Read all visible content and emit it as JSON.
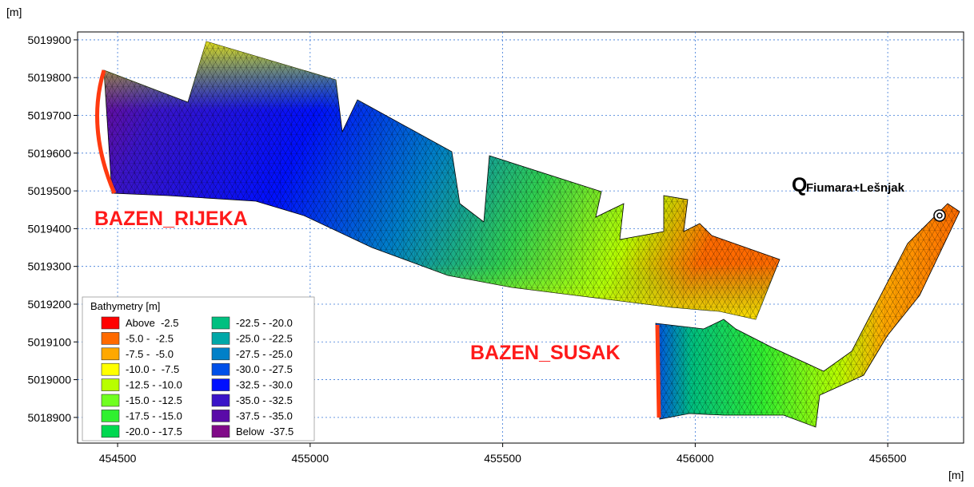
{
  "map": {
    "y_unit": "[m]",
    "x_unit": "[m]",
    "xlim": [
      454396,
      456697
    ],
    "ylim": [
      5018832,
      5019921
    ],
    "xticks": [
      454500,
      455000,
      455500,
      456000,
      456500
    ],
    "yticks": [
      5018900,
      5019000,
      5019100,
      5019200,
      5019300,
      5019400,
      5019500,
      5019600,
      5019700,
      5019800,
      5019900
    ],
    "grid": true,
    "annotations": {
      "rijeka": "BAZEN_RIJEKA",
      "susak": "BAZEN_SUSAK",
      "q": "Q",
      "q_sub": "Fiumara+Lešnjak"
    },
    "legend": {
      "title": "Bathymetry [m]",
      "items": [
        {
          "label": "Above  -2.5",
          "color": "#ff0000"
        },
        {
          "label": "-5.0 -  -2.5",
          "color": "#ff6a00"
        },
        {
          "label": "-7.5 -  -5.0",
          "color": "#ffa800"
        },
        {
          "label": "-10.0 -  -7.5",
          "color": "#ffff00"
        },
        {
          "label": "-12.5 - -10.0",
          "color": "#b8ff00"
        },
        {
          "label": "-15.0 - -12.5",
          "color": "#70ff20"
        },
        {
          "label": "-17.5 - -15.0",
          "color": "#30f030"
        },
        {
          "label": "-20.0 - -17.5",
          "color": "#00d850"
        },
        {
          "label": "-22.5 - -20.0",
          "color": "#00c080"
        },
        {
          "label": "-25.0 - -22.5",
          "color": "#00a8a8"
        },
        {
          "label": "-27.5 - -25.0",
          "color": "#0080c8"
        },
        {
          "label": "-30.0 - -27.5",
          "color": "#0050e8"
        },
        {
          "label": "-32.5 - -30.0",
          "color": "#0010ff"
        },
        {
          "label": "-35.0 - -32.5",
          "color": "#3a14c8"
        },
        {
          "label": "-37.5 - -35.0",
          "color": "#5a0aa8"
        },
        {
          "label": "Below  -37.5",
          "color": "#800a88"
        }
      ]
    }
  }
}
